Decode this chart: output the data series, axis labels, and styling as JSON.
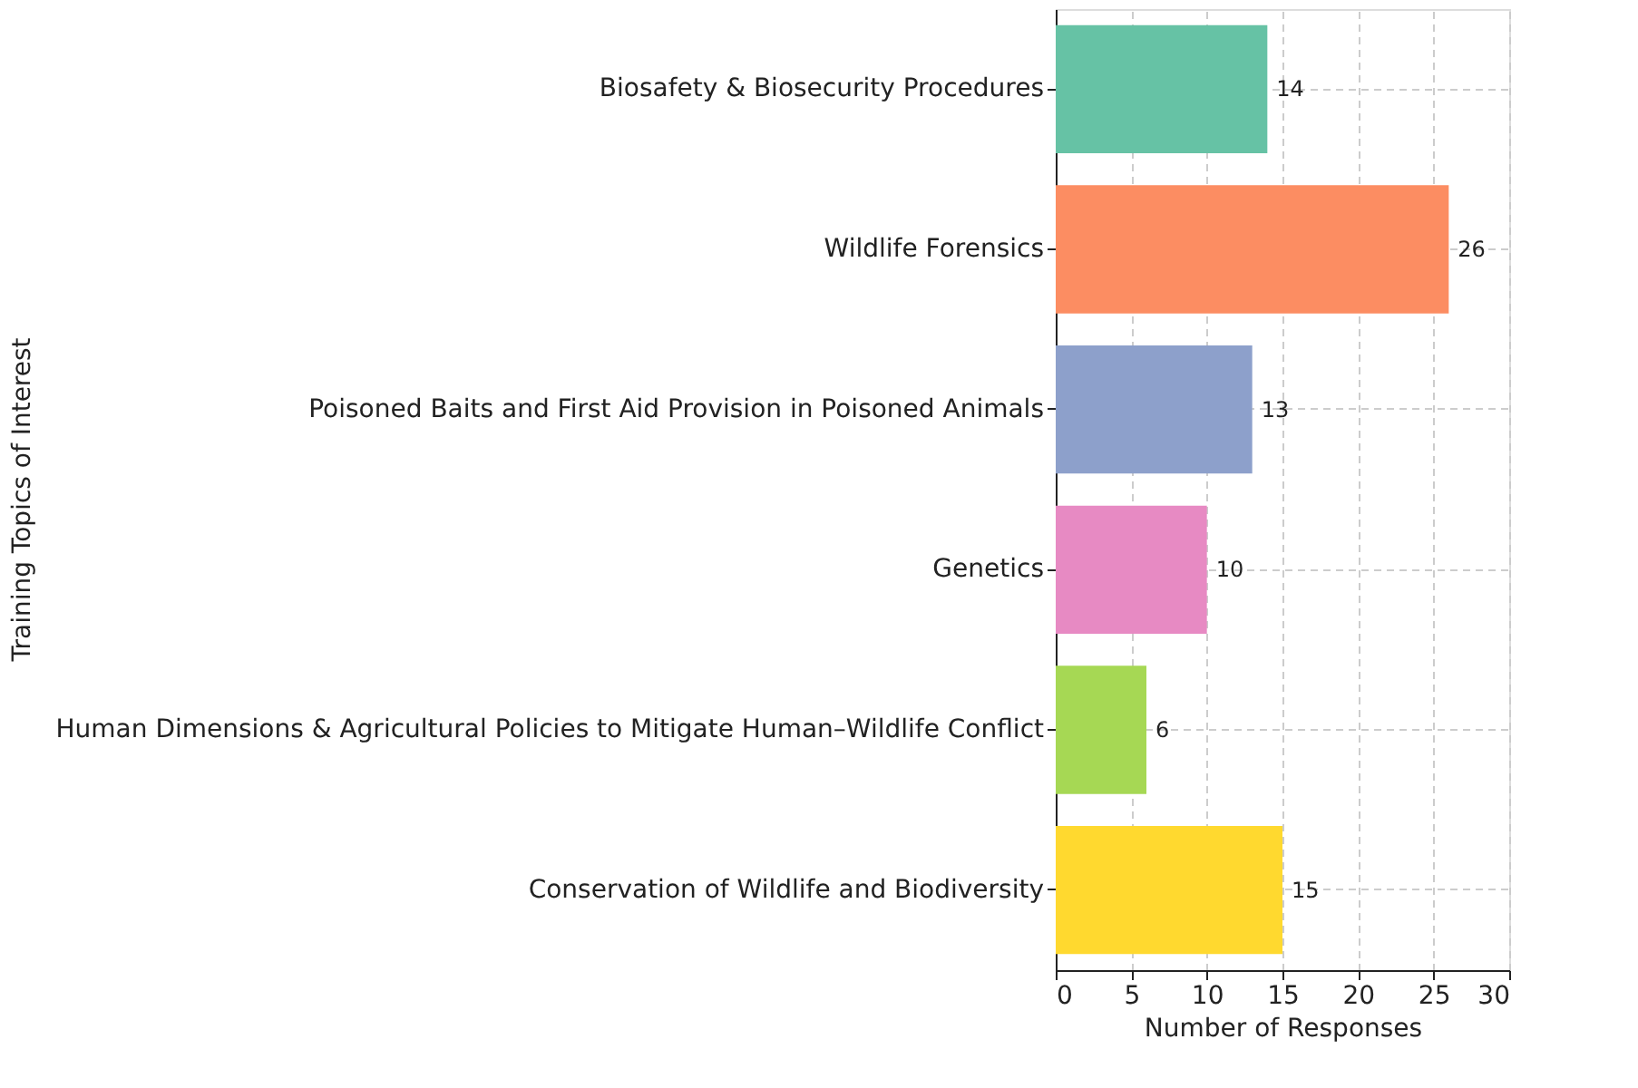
{
  "chart_data": {
    "type": "bar",
    "orientation": "horizontal",
    "xlabel": "Number of Responses",
    "ylabel": "Training Topics of Interest",
    "categories": [
      "Biosafety & Biosecurity Procedures",
      "Wildlife Forensics",
      "Poisoned Baits and First Aid Provision in Poisoned Animals",
      "Genetics",
      "Human Dimensions & Agricultural Policies to Mitigate Human–Wildlife Conflict",
      "Conservation of Wildlife and Biodiversity"
    ],
    "values": [
      14,
      26,
      13,
      10,
      6,
      15
    ],
    "colors": [
      "#66c2a5",
      "#fc8d62",
      "#8da0cb",
      "#e78ac3",
      "#a6d854",
      "#ffd92f"
    ],
    "xlim": [
      0,
      30
    ],
    "xticks": [
      0,
      5,
      10,
      15,
      20,
      25,
      30
    ],
    "grid": true,
    "data_labels": true
  }
}
